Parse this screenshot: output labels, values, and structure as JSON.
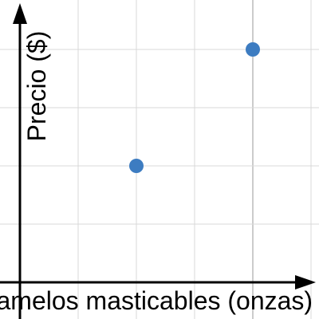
{
  "chart_data": {
    "type": "scatter",
    "title": "",
    "xlabel": "Caramelos masticables (onzas)",
    "ylabel": "Precio ($)",
    "xlim": [
      0,
      5.3
    ],
    "ylim": [
      0,
      5
    ],
    "grid": true,
    "tick_labels_shown": false,
    "point_color": "#3d7cc1",
    "series": [
      {
        "x": [
          2,
          4
        ],
        "y": [
          2,
          4
        ]
      }
    ]
  }
}
